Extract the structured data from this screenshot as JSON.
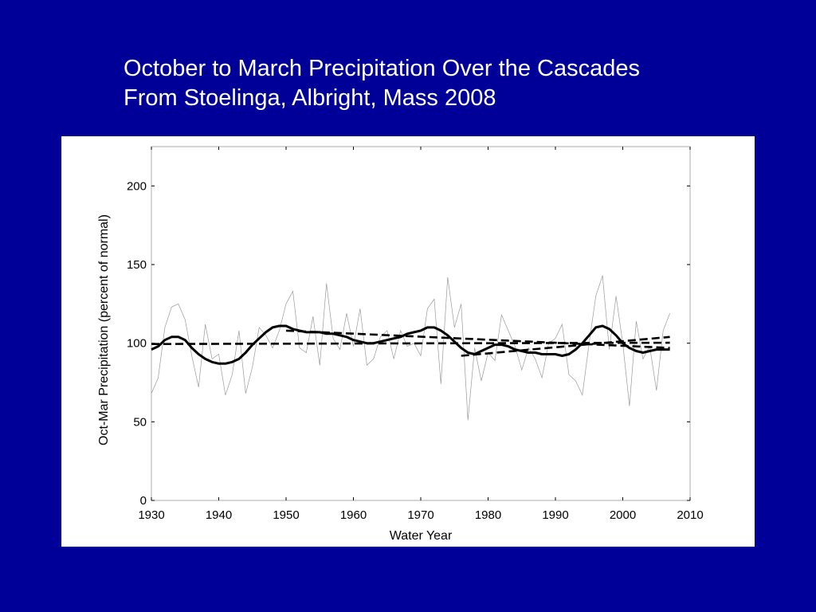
{
  "slide": {
    "title_line1": "October to March Precipitation Over the Cascades",
    "title_line2": "From Stoelinga, Albright, Mass 2008"
  },
  "colors": {
    "background": "#000099",
    "panel": "#ffffff",
    "title": "#ffffff",
    "series_raw": "#aaaaaa",
    "series_main": "#000000"
  },
  "chart_data": {
    "type": "line",
    "xlabel": "Water Year",
    "ylabel": "Oct-Mar Precipitation (percent of normal)",
    "xlim": [
      1930,
      2010
    ],
    "ylim": [
      0,
      225
    ],
    "xticks": [
      1930,
      1940,
      1950,
      1960,
      1970,
      1980,
      1990,
      2000,
      2010
    ],
    "yticks": [
      0,
      50,
      100,
      150,
      200
    ],
    "grid": false,
    "legend": "none",
    "series": [
      {
        "style": "thin-gray",
        "x": [
          1930,
          1931,
          1932,
          1933,
          1934,
          1935,
          1936,
          1937,
          1938,
          1939,
          1940,
          1941,
          1942,
          1943,
          1944,
          1945,
          1946,
          1947,
          1948,
          1949,
          1950,
          1951,
          1952,
          1953,
          1954,
          1955,
          1956,
          1957,
          1958,
          1959,
          1960,
          1961,
          1962,
          1963,
          1964,
          1965,
          1966,
          1967,
          1968,
          1969,
          1970,
          1971,
          1972,
          1973,
          1974,
          1975,
          1976,
          1977,
          1978,
          1979,
          1980,
          1981,
          1982,
          1983,
          1984,
          1985,
          1986,
          1987,
          1988,
          1989,
          1990,
          1991,
          1992,
          1993,
          1994,
          1995,
          1996,
          1997,
          1998,
          1999,
          2000,
          2001,
          2002,
          2003,
          2004,
          2005,
          2006,
          2007
        ],
        "values": [
          68,
          78,
          110,
          123,
          125,
          115,
          92,
          72,
          112,
          90,
          93,
          67,
          80,
          108,
          68,
          85,
          110,
          105,
          97,
          108,
          125,
          133,
          97,
          94,
          117,
          86,
          138,
          103,
          96,
          119,
          98,
          122,
          86,
          90,
          104,
          108,
          90,
          108,
          98,
          100,
          92,
          122,
          128,
          74,
          142,
          110,
          125,
          51,
          97,
          76,
          94,
          89,
          118,
          108,
          98,
          83,
          97,
          90,
          78,
          100,
          103,
          112,
          80,
          76,
          67,
          100,
          130,
          143,
          96,
          130,
          100,
          60,
          114,
          90,
          98,
          70,
          108,
          119
        ]
      },
      {
        "style": "thick-solid",
        "x": [
          1930,
          1931,
          1932,
          1933,
          1934,
          1935,
          1936,
          1937,
          1938,
          1939,
          1940,
          1941,
          1942,
          1943,
          1944,
          1945,
          1946,
          1947,
          1948,
          1949,
          1950,
          1951,
          1952,
          1953,
          1954,
          1955,
          1956,
          1957,
          1958,
          1959,
          1960,
          1961,
          1962,
          1963,
          1964,
          1965,
          1966,
          1967,
          1968,
          1969,
          1970,
          1971,
          1972,
          1973,
          1974,
          1975,
          1976,
          1977,
          1978,
          1979,
          1980,
          1981,
          1982,
          1983,
          1984,
          1985,
          1986,
          1987,
          1988,
          1989,
          1990,
          1991,
          1992,
          1993,
          1994,
          1995,
          1996,
          1997,
          1998,
          1999,
          2000,
          2001,
          2002,
          2003,
          2004,
          2005,
          2006,
          2007
        ],
        "values": [
          96,
          98,
          102,
          104,
          104,
          102,
          97,
          93,
          90,
          88,
          87,
          87,
          88,
          90,
          94,
          99,
          103,
          107,
          110,
          111,
          111,
          109,
          108,
          107,
          107,
          107,
          106,
          106,
          105,
          104,
          102,
          101,
          100,
          100,
          101,
          102,
          103,
          104,
          106,
          107,
          108,
          110,
          110,
          108,
          105,
          101,
          97,
          94,
          93,
          95,
          97,
          99,
          99,
          98,
          96,
          95,
          94,
          94,
          93,
          93,
          93,
          92,
          93,
          96,
          100,
          105,
          110,
          111,
          109,
          105,
          100,
          97,
          95,
          94,
          95,
          96,
          96,
          96
        ]
      },
      {
        "style": "dashed",
        "x": [
          1930,
          2007
        ],
        "values": [
          99.5,
          100.3
        ]
      },
      {
        "style": "dashed",
        "x": [
          1950,
          2007
        ],
        "values": [
          108,
          97
        ]
      },
      {
        "style": "dashed",
        "x": [
          1976,
          2007
        ],
        "values": [
          92,
          104
        ]
      }
    ]
  }
}
